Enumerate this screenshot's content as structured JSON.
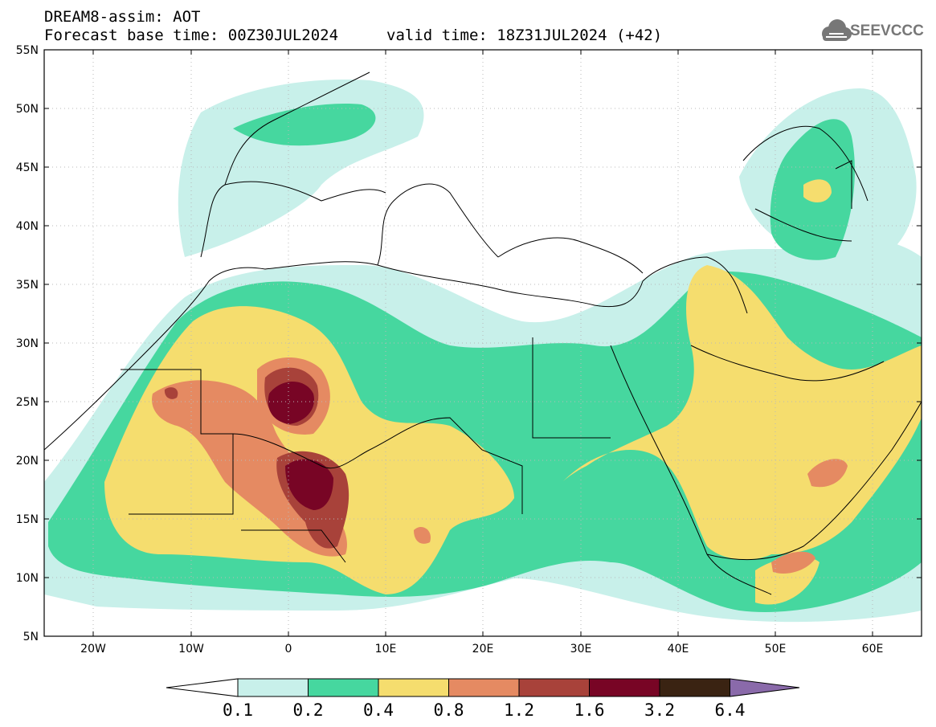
{
  "header": {
    "title": "DREAM8-assim: AOT",
    "subtitle": "Forecast base time: 00Z30JUL2024",
    "valid_time": "valid time: 18Z31JUL2024 (+42)"
  },
  "logo": {
    "text": "SEEVCCC",
    "icon": "cloud-icon"
  },
  "map": {
    "lat_labels": [
      "55N",
      "50N",
      "45N",
      "40N",
      "35N",
      "30N",
      "25N",
      "20N",
      "15N",
      "10N",
      "5N"
    ],
    "lon_labels": [
      "20W",
      "10W",
      "0",
      "10E",
      "20E",
      "30E",
      "40E",
      "50E",
      "60E"
    ],
    "lon_range": [
      -25,
      65
    ],
    "lat_range": [
      5,
      55
    ],
    "grid": "dotted"
  },
  "colorbar": {
    "labels": [
      "0.1",
      "0.2",
      "0.4",
      "0.8",
      "1.2",
      "1.6",
      "3.2",
      "6.4"
    ],
    "colors": [
      "#c8f0ea",
      "#46d79f",
      "#f5dd6e",
      "#e58a62",
      "#a8423a",
      "#780525",
      "#3a2312",
      "#8a6aaa"
    ],
    "under_color": "#ffffff"
  }
}
